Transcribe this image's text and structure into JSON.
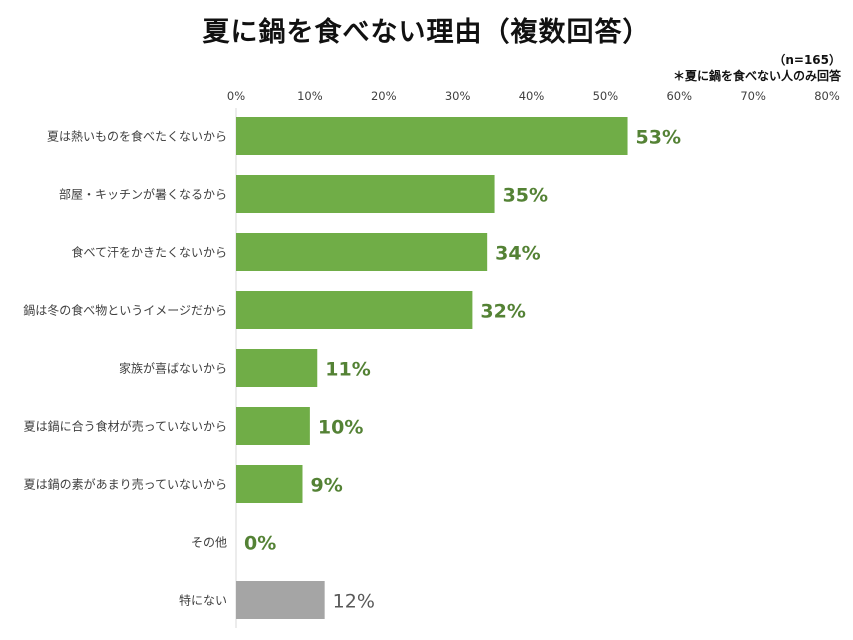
{
  "title": "夏に鍋を食べない理由（複数回答）",
  "notes": {
    "sample_size": "（n=165）",
    "respondents": "＊夏に鍋を食べない人のみ回答"
  },
  "colors": {
    "bar_primary": "#70ad47",
    "bar_other": "#a5a5a5",
    "label_primary": "#548235",
    "label_other": "#595959",
    "axis": "#d9d9d9",
    "text": "#404040"
  },
  "chart_data": {
    "type": "bar",
    "orientation": "horizontal",
    "title": "夏に鍋を食べない理由（複数回答）",
    "xlim": [
      0,
      80
    ],
    "x_ticks": [
      "0%",
      "10%",
      "20%",
      "30%",
      "40%",
      "50%",
      "60%",
      "70%",
      "80%"
    ],
    "x_axis_position": "top",
    "grid": false,
    "legend": "none",
    "categories": [
      "夏は熱いものを食べたくないから",
      "部屋・キッチンが暑くなるから",
      "食べて汗をかきたくないから",
      "鍋は冬の食べ物というイメージだから",
      "家族が喜ばないから",
      "夏は鍋に合う食材が売っていないから",
      "夏は鍋の素があまり売っていないから",
      "その他",
      "特にない"
    ],
    "values": [
      53,
      35,
      34,
      32,
      11,
      10,
      9,
      0,
      12
    ],
    "value_labels": [
      "53%",
      "35%",
      "34%",
      "32%",
      "11%",
      "10%",
      "9%",
      "0%",
      "12%"
    ],
    "bar_color_groups": [
      "primary",
      "primary",
      "primary",
      "primary",
      "primary",
      "primary",
      "primary",
      "primary",
      "other"
    ]
  }
}
